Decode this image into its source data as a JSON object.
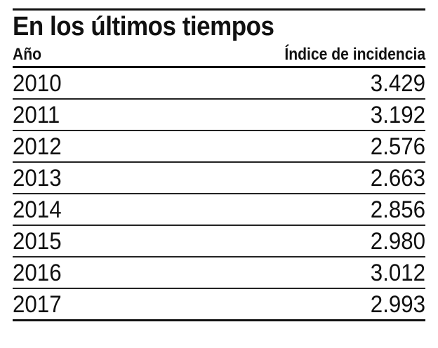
{
  "chart_data": {
    "type": "table",
    "title": "En los últimos tiempos",
    "columns": [
      "Año",
      "Índice de incidencia"
    ],
    "rows": [
      {
        "year": "2010",
        "value": "3.429"
      },
      {
        "year": "2011",
        "value": "3.192"
      },
      {
        "year": "2012",
        "value": "2.576"
      },
      {
        "year": "2013",
        "value": "2.663"
      },
      {
        "year": "2014",
        "value": "2.856"
      },
      {
        "year": "2015",
        "value": "2.980"
      },
      {
        "year": "2016",
        "value": "3.012"
      },
      {
        "year": "2017",
        "value": "2.993"
      }
    ]
  }
}
